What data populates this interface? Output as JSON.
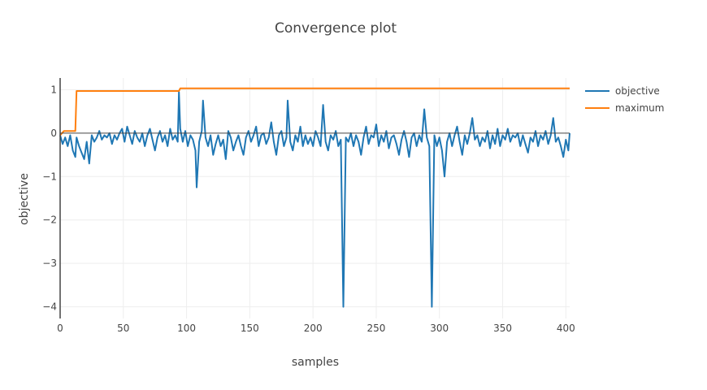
{
  "chart_data": {
    "type": "line",
    "title": "Convergence plot",
    "xlabel": "samples",
    "ylabel": "objective",
    "xlim": [
      0,
      403
    ],
    "ylim": [
      -4.27,
      1.27
    ],
    "xticks": [
      0,
      50,
      100,
      150,
      200,
      250,
      300,
      350,
      400
    ],
    "yticks": [
      1,
      0,
      -1,
      -2,
      -3,
      -4
    ],
    "ytick_labels": [
      "1",
      "0",
      "−1",
      "−2",
      "−3",
      "−4"
    ],
    "grid": true,
    "legend_position": "top-right",
    "series": [
      {
        "name": "objective",
        "color": "#1f77b4",
        "points": [
          [
            0,
            -0.05
          ],
          [
            2,
            -0.25
          ],
          [
            4,
            -0.1
          ],
          [
            6,
            -0.3
          ],
          [
            8,
            -0.05
          ],
          [
            10,
            -0.4
          ],
          [
            12,
            -0.55
          ],
          [
            13,
            -0.1
          ],
          [
            15,
            -0.3
          ],
          [
            17,
            -0.45
          ],
          [
            19,
            -0.6
          ],
          [
            21,
            -0.2
          ],
          [
            23,
            -0.7
          ],
          [
            25,
            -0.05
          ],
          [
            27,
            -0.2
          ],
          [
            29,
            -0.1
          ],
          [
            31,
            0.05
          ],
          [
            33,
            -0.15
          ],
          [
            35,
            -0.05
          ],
          [
            37,
            -0.1
          ],
          [
            39,
            0.0
          ],
          [
            41,
            -0.25
          ],
          [
            43,
            -0.05
          ],
          [
            45,
            -0.15
          ],
          [
            47,
            0.0
          ],
          [
            49,
            0.1
          ],
          [
            51,
            -0.2
          ],
          [
            53,
            0.15
          ],
          [
            55,
            -0.05
          ],
          [
            57,
            -0.25
          ],
          [
            59,
            0.05
          ],
          [
            61,
            -0.1
          ],
          [
            63,
            -0.2
          ],
          [
            65,
            0.0
          ],
          [
            67,
            -0.3
          ],
          [
            69,
            -0.05
          ],
          [
            71,
            0.1
          ],
          [
            73,
            -0.15
          ],
          [
            75,
            -0.4
          ],
          [
            77,
            -0.1
          ],
          [
            79,
            0.05
          ],
          [
            81,
            -0.2
          ],
          [
            83,
            -0.05
          ],
          [
            85,
            -0.3
          ],
          [
            87,
            0.1
          ],
          [
            89,
            -0.15
          ],
          [
            91,
            -0.05
          ],
          [
            93,
            -0.2
          ],
          [
            94,
            0.95
          ],
          [
            95,
            0.1
          ],
          [
            97,
            -0.2
          ],
          [
            99,
            0.05
          ],
          [
            101,
            -0.3
          ],
          [
            103,
            -0.05
          ],
          [
            105,
            -0.15
          ],
          [
            107,
            -0.4
          ],
          [
            108,
            -1.25
          ],
          [
            110,
            -0.2
          ],
          [
            112,
            0.05
          ],
          [
            113,
            0.75
          ],
          [
            115,
            -0.1
          ],
          [
            117,
            -0.3
          ],
          [
            119,
            -0.05
          ],
          [
            121,
            -0.5
          ],
          [
            123,
            -0.25
          ],
          [
            125,
            -0.05
          ],
          [
            127,
            -0.3
          ],
          [
            129,
            -0.15
          ],
          [
            131,
            -0.6
          ],
          [
            133,
            0.05
          ],
          [
            135,
            -0.1
          ],
          [
            137,
            -0.4
          ],
          [
            139,
            -0.2
          ],
          [
            141,
            -0.05
          ],
          [
            143,
            -0.3
          ],
          [
            145,
            -0.5
          ],
          [
            147,
            -0.1
          ],
          [
            149,
            0.05
          ],
          [
            151,
            -0.2
          ],
          [
            153,
            -0.05
          ],
          [
            155,
            0.15
          ],
          [
            157,
            -0.3
          ],
          [
            159,
            -0.05
          ],
          [
            161,
            0.0
          ],
          [
            163,
            -0.25
          ],
          [
            165,
            -0.1
          ],
          [
            167,
            0.25
          ],
          [
            169,
            -0.2
          ],
          [
            171,
            -0.5
          ],
          [
            173,
            -0.05
          ],
          [
            175,
            0.05
          ],
          [
            177,
            -0.3
          ],
          [
            179,
            -0.1
          ],
          [
            180,
            0.75
          ],
          [
            182,
            -0.2
          ],
          [
            184,
            -0.4
          ],
          [
            186,
            -0.05
          ],
          [
            188,
            -0.2
          ],
          [
            190,
            0.15
          ],
          [
            192,
            -0.3
          ],
          [
            194,
            -0.05
          ],
          [
            196,
            -0.25
          ],
          [
            198,
            -0.1
          ],
          [
            200,
            -0.3
          ],
          [
            202,
            0.05
          ],
          [
            204,
            -0.1
          ],
          [
            206,
            -0.3
          ],
          [
            208,
            0.65
          ],
          [
            210,
            -0.2
          ],
          [
            212,
            -0.4
          ],
          [
            214,
            -0.05
          ],
          [
            216,
            -0.15
          ],
          [
            218,
            0.05
          ],
          [
            220,
            -0.3
          ],
          [
            222,
            -0.15
          ],
          [
            224,
            -4.0
          ],
          [
            226,
            -0.1
          ],
          [
            228,
            -0.2
          ],
          [
            230,
            0.0
          ],
          [
            232,
            -0.3
          ],
          [
            234,
            -0.05
          ],
          [
            236,
            -0.2
          ],
          [
            238,
            -0.5
          ],
          [
            240,
            -0.1
          ],
          [
            242,
            0.15
          ],
          [
            244,
            -0.25
          ],
          [
            246,
            -0.05
          ],
          [
            248,
            -0.1
          ],
          [
            250,
            0.2
          ],
          [
            252,
            -0.3
          ],
          [
            254,
            -0.05
          ],
          [
            256,
            -0.2
          ],
          [
            258,
            0.05
          ],
          [
            260,
            -0.35
          ],
          [
            262,
            -0.1
          ],
          [
            264,
            -0.05
          ],
          [
            266,
            -0.25
          ],
          [
            268,
            -0.5
          ],
          [
            270,
            -0.15
          ],
          [
            272,
            0.05
          ],
          [
            274,
            -0.2
          ],
          [
            276,
            -0.55
          ],
          [
            278,
            -0.1
          ],
          [
            280,
            0.0
          ],
          [
            282,
            -0.3
          ],
          [
            284,
            -0.05
          ],
          [
            286,
            -0.2
          ],
          [
            288,
            0.55
          ],
          [
            290,
            -0.1
          ],
          [
            292,
            -0.3
          ],
          [
            294,
            -4.0
          ],
          [
            296,
            -0.05
          ],
          [
            298,
            -0.3
          ],
          [
            300,
            -0.1
          ],
          [
            302,
            -0.4
          ],
          [
            304,
            -1.0
          ],
          [
            306,
            -0.2
          ],
          [
            308,
            0.0
          ],
          [
            310,
            -0.3
          ],
          [
            312,
            -0.05
          ],
          [
            314,
            0.15
          ],
          [
            316,
            -0.2
          ],
          [
            318,
            -0.5
          ],
          [
            320,
            -0.05
          ],
          [
            322,
            -0.25
          ],
          [
            324,
            0.0
          ],
          [
            326,
            0.35
          ],
          [
            328,
            -0.15
          ],
          [
            330,
            -0.05
          ],
          [
            332,
            -0.3
          ],
          [
            334,
            -0.1
          ],
          [
            336,
            -0.2
          ],
          [
            338,
            0.05
          ],
          [
            340,
            -0.35
          ],
          [
            342,
            -0.05
          ],
          [
            344,
            -0.25
          ],
          [
            346,
            0.1
          ],
          [
            348,
            -0.3
          ],
          [
            350,
            -0.05
          ],
          [
            352,
            -0.15
          ],
          [
            354,
            0.1
          ],
          [
            356,
            -0.2
          ],
          [
            358,
            -0.05
          ],
          [
            360,
            -0.1
          ],
          [
            362,
            0.0
          ],
          [
            364,
            -0.3
          ],
          [
            366,
            -0.05
          ],
          [
            368,
            -0.25
          ],
          [
            370,
            -0.45
          ],
          [
            372,
            -0.1
          ],
          [
            374,
            -0.2
          ],
          [
            376,
            0.05
          ],
          [
            378,
            -0.3
          ],
          [
            380,
            -0.05
          ],
          [
            382,
            -0.15
          ],
          [
            384,
            0.05
          ],
          [
            386,
            -0.25
          ],
          [
            388,
            -0.05
          ],
          [
            390,
            0.35
          ],
          [
            392,
            -0.2
          ],
          [
            394,
            -0.1
          ],
          [
            396,
            -0.3
          ],
          [
            398,
            -0.55
          ],
          [
            400,
            -0.15
          ],
          [
            402,
            -0.4
          ],
          [
            403,
            0.0
          ]
        ]
      },
      {
        "name": "maximum",
        "color": "#ff7f0e",
        "points": [
          [
            0,
            -0.05
          ],
          [
            3,
            0.05
          ],
          [
            12,
            0.05
          ],
          [
            13,
            0.97
          ],
          [
            94,
            0.97
          ],
          [
            95,
            1.03
          ],
          [
            403,
            1.03
          ]
        ]
      }
    ]
  }
}
